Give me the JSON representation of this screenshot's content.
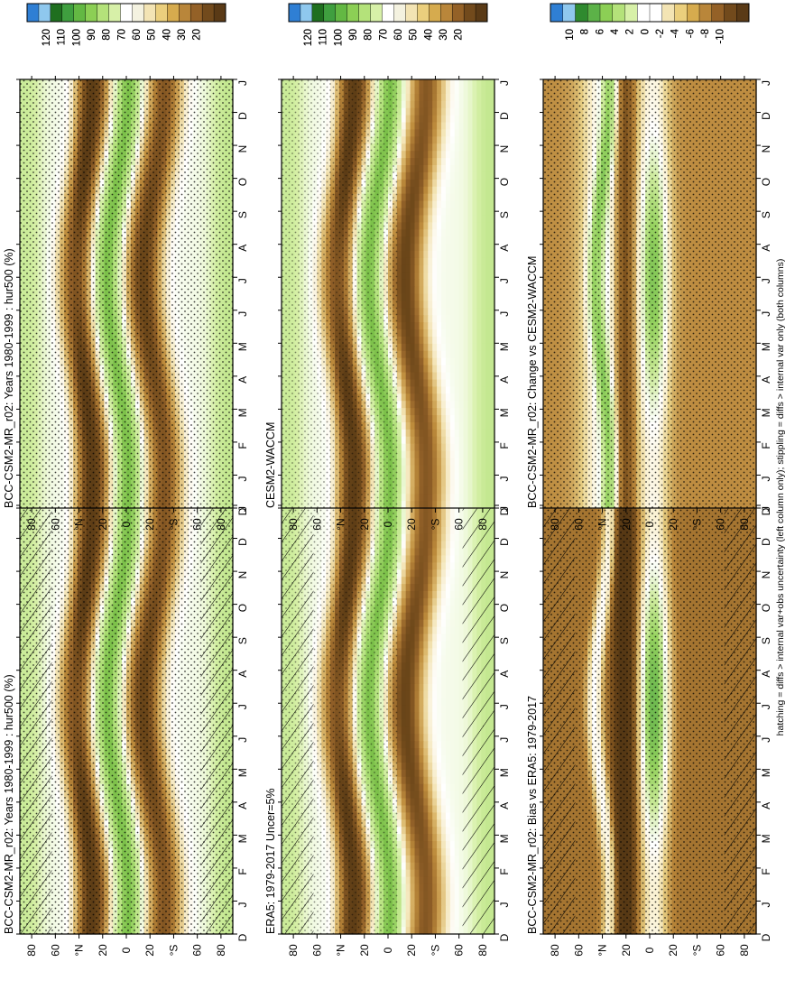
{
  "footnote": "hatching = diffs > internal var+obs uncertainty (left column only); stippling = diffs > internal var only (both columns)",
  "months": [
    "D",
    "J",
    "F",
    "M",
    "A",
    "M",
    "J",
    "J",
    "A",
    "S",
    "O",
    "N",
    "D",
    "J"
  ],
  "lat_labels": [
    "80",
    "60",
    "°N",
    "20",
    "0",
    "20",
    "°S",
    "60",
    "80"
  ],
  "colorbars": {
    "absolute": {
      "labels": [
        "120",
        "110",
        "100",
        "90",
        "80",
        "70",
        "60",
        "50",
        "40",
        "30",
        "20"
      ],
      "colors": [
        "#2f7fd4",
        "#8fc8ee",
        "#1f6f1f",
        "#3f9f3f",
        "#63b843",
        "#8ccf55",
        "#b4e27a",
        "#d7f0a8",
        "#ffffff",
        "#f4f2e0",
        "#f3e4b4",
        "#ebcf7d",
        "#d6ab4e",
        "#b9863a",
        "#946127",
        "#724a1c",
        "#5a3a16"
      ]
    },
    "difference": {
      "labels": [
        "10",
        "8",
        "6",
        "4",
        "2",
        "0",
        "-2",
        "-4",
        "-6",
        "-8",
        "-10"
      ],
      "colors": [
        "#2f7fd4",
        "#8fc8ee",
        "#2f8a2f",
        "#5cb248",
        "#8ccf55",
        "#b4e27a",
        "#d7f0a8",
        "#ffffff",
        "#ffffff",
        "#f3e4b4",
        "#ebcf7d",
        "#d6ab4e",
        "#b9863a",
        "#946127",
        "#724a1c",
        "#5a3a16"
      ]
    }
  },
  "panels": [
    {
      "title": "BCC-CSM2-MR_r02: Years 1980-1999 : hur500 (%)",
      "scale": "absolute",
      "hatching": true,
      "stippling": "heavy"
    },
    {
      "title": "BCC-CSM2-MR_r02: Years 1980-1999 : hur500 (%)",
      "scale": "absolute",
      "hatching": false,
      "stippling": "heavy"
    },
    {
      "title": "ERA5: 1979-2017 Uncer=5%",
      "scale": "absolute",
      "hatching": true,
      "stippling": "light"
    },
    {
      "title": "CESM2-WACCM",
      "scale": "absolute",
      "hatching": false,
      "stippling": "light"
    },
    {
      "title": "BCC-CSM2-MR_r02: Bias vs ERA5: 1979-2017",
      "scale": "difference",
      "hatching": true,
      "stippling": "heavy"
    },
    {
      "title": "BCC-CSM2-MR_r02: Change vs CESM2-WACCM",
      "scale": "difference",
      "hatching": false,
      "stippling": "heavy"
    }
  ],
  "chart_data": [
    {
      "type": "heatmap",
      "title": "BCC-CSM2-MR_r02: Years 1980-1999 : hur500 (%)",
      "x": [
        "D",
        "J",
        "F",
        "M",
        "A",
        "M",
        "J",
        "J",
        "A",
        "S",
        "O",
        "N",
        "D",
        "J"
      ],
      "y": [
        "80",
        "60",
        "°N",
        "20",
        "0",
        "20",
        "°S",
        "60",
        "80"
      ],
      "value_range": [
        20,
        120
      ],
      "units": "%"
    },
    {
      "type": "heatmap",
      "title": "BCC-CSM2-MR_r02: Years 1980-1999 : hur500 (%)",
      "x": [
        "D",
        "J",
        "F",
        "M",
        "A",
        "M",
        "J",
        "J",
        "A",
        "S",
        "O",
        "N",
        "D",
        "J"
      ],
      "y": [
        "80",
        "60",
        "°N",
        "20",
        "0",
        "20",
        "°S",
        "60",
        "80"
      ],
      "value_range": [
        20,
        120
      ],
      "units": "%"
    },
    {
      "type": "heatmap",
      "title": "ERA5: 1979-2017 Uncer=5%",
      "x": [
        "D",
        "J",
        "F",
        "M",
        "A",
        "M",
        "J",
        "J",
        "A",
        "S",
        "O",
        "N",
        "D",
        "J"
      ],
      "y": [
        "80",
        "60",
        "°N",
        "20",
        "0",
        "20",
        "°S",
        "60",
        "80"
      ],
      "value_range": [
        20,
        120
      ],
      "units": "%"
    },
    {
      "type": "heatmap",
      "title": "CESM2-WACCM",
      "x": [
        "D",
        "J",
        "F",
        "M",
        "A",
        "M",
        "J",
        "J",
        "A",
        "S",
        "O",
        "N",
        "D",
        "J"
      ],
      "y": [
        "80",
        "60",
        "°N",
        "20",
        "0",
        "20",
        "°S",
        "60",
        "80"
      ],
      "value_range": [
        20,
        120
      ],
      "units": "%"
    },
    {
      "type": "heatmap",
      "title": "BCC-CSM2-MR_r02: Bias vs ERA5: 1979-2017",
      "x": [
        "D",
        "J",
        "F",
        "M",
        "A",
        "M",
        "J",
        "J",
        "A",
        "S",
        "O",
        "N",
        "D",
        "J"
      ],
      "y": [
        "80",
        "60",
        "°N",
        "20",
        "0",
        "20",
        "°S",
        "60",
        "80"
      ],
      "value_range": [
        -10,
        10
      ]
    },
    {
      "type": "heatmap",
      "title": "BCC-CSM2-MR_r02: Change vs CESM2-WACCM",
      "x": [
        "D",
        "J",
        "F",
        "M",
        "A",
        "M",
        "J",
        "J",
        "A",
        "S",
        "O",
        "N",
        "D",
        "J"
      ],
      "y": [
        "80",
        "60",
        "°N",
        "20",
        "0",
        "20",
        "°S",
        "60",
        "80"
      ],
      "value_range": [
        -10,
        10
      ]
    }
  ]
}
